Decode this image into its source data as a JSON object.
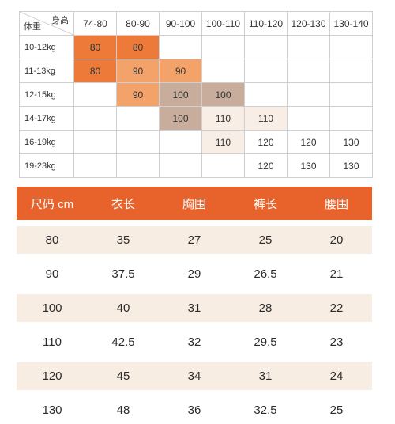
{
  "matrix": {
    "corner_top": "身高",
    "corner_bottom": "体重",
    "columns": [
      "74-80",
      "80-90",
      "90-100",
      "100-110",
      "110-120",
      "120-130",
      "130-140"
    ],
    "rows": [
      {
        "label": "10-12kg",
        "cells": [
          "80",
          "80",
          "",
          "",
          "",
          "",
          ""
        ]
      },
      {
        "label": "11-13kg",
        "cells": [
          "80",
          "90",
          "90",
          "",
          "",
          "",
          ""
        ]
      },
      {
        "label": "12-15kg",
        "cells": [
          "",
          "90",
          "100",
          "100",
          "",
          "",
          ""
        ]
      },
      {
        "label": "14-17kg",
        "cells": [
          "",
          "",
          "100",
          "110",
          "110",
          "",
          ""
        ]
      },
      {
        "label": "16-19kg",
        "cells": [
          "",
          "",
          "",
          "110",
          "120",
          "120",
          "130"
        ]
      },
      {
        "label": "19-23kg",
        "cells": [
          "",
          "",
          "",
          "",
          "120",
          "130",
          "130"
        ]
      }
    ],
    "colors": {
      "orange": "#ee7a3a",
      "light_orange": "#f3a36a",
      "taupe": "#c8ad9c",
      "cream": "#f8eee5"
    }
  },
  "size_table": {
    "headers": [
      "尺码 cm",
      "衣长",
      "胸围",
      "裤长",
      "腰围"
    ],
    "rows": [
      [
        "80",
        "35",
        "27",
        "25",
        "20"
      ],
      [
        "90",
        "37.5",
        "29",
        "26.5",
        "21"
      ],
      [
        "100",
        "40",
        "31",
        "28",
        "22"
      ],
      [
        "110",
        "42.5",
        "32",
        "29.5",
        "23"
      ],
      [
        "120",
        "45",
        "34",
        "31",
        "24"
      ],
      [
        "130",
        "48",
        "36",
        "32.5",
        "25"
      ]
    ],
    "header_color": "#e8632b",
    "alt_row_color": "#f8ede3"
  }
}
